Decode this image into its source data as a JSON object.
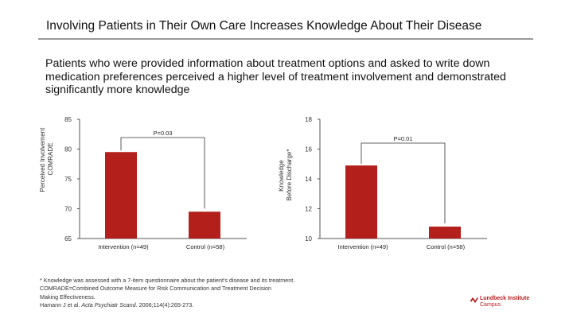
{
  "title": "Involving Patients in Their Own Care Increases Knowledge About Their Disease",
  "subtitle": "Patients who were provided information about treatment options and asked to write down medication preferences perceived a higher level of treatment involvement and demonstrated significantly more knowledge",
  "colors": {
    "bar": "#b3201b",
    "axis": "#555555",
    "bracket": "#333333"
  },
  "chart_data": [
    {
      "type": "bar",
      "ylabel": "Perceived Involvement COMRADE",
      "ylim": [
        65,
        85
      ],
      "yticks": [
        "85",
        "80",
        "75",
        "70",
        "65"
      ],
      "yticks_values": [
        85,
        80,
        75,
        70,
        65
      ],
      "categories": [
        "Intervention (n=49)",
        "Control (n=58)"
      ],
      "values": [
        79.5,
        69.5
      ],
      "annotation": "P=0.03"
    },
    {
      "type": "bar",
      "ylabel": "Knowledge Before Discharge*",
      "ylim": [
        10,
        18
      ],
      "yticks": [
        "18",
        "16",
        "14",
        "12",
        "10"
      ],
      "yticks_values": [
        18,
        16,
        14,
        12,
        10
      ],
      "categories": [
        "Intervention (n=49)",
        "Control (n=58)"
      ],
      "values": [
        14.9,
        10.8
      ],
      "annotation": "P=0.01"
    }
  ],
  "footnotes": [
    "* Knowledge was assessed with a 7-item questionnaire about the patient's disease and its treatment.",
    "COMRADE=Combined Outcome Measure for Risk Communication and Treatment Decision",
    "Making Effectiveness.",
    "Hamann J et al.",
    "Acta Psychiatr Scand.",
    "2006;114(4):265-273."
  ],
  "logo": {
    "line1": "Lundbeck Institute",
    "line2": "Campus"
  }
}
